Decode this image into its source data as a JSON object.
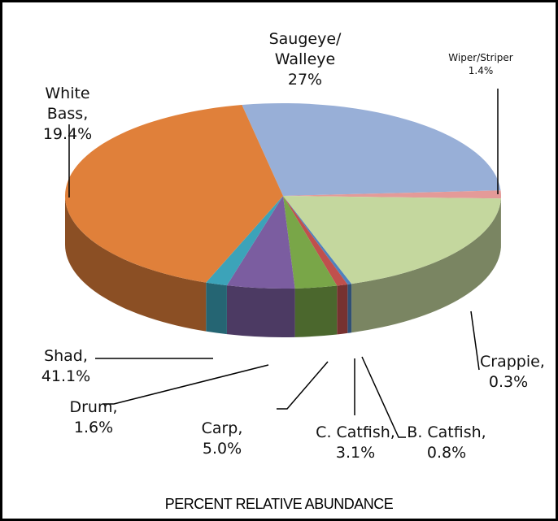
{
  "chart_data": {
    "type": "pie3d",
    "title": "PERCENT RELATIVE ABUNDANCE",
    "categories": [
      "Saugeye/ Walleye",
      "Wiper/Striper",
      "White Bass,",
      "Crappie,",
      "B. Catfish,",
      "C. Catfish,",
      "Carp,",
      "Drum,",
      "Shad,"
    ],
    "values": [
      27,
      1.4,
      19.4,
      0.3,
      0.8,
      3.1,
      5.0,
      1.6,
      41.1
    ],
    "value_labels": [
      "27%",
      "1.4%",
      "19.4%",
      "0.3%",
      "0.8%",
      "3.1%",
      "5.0%",
      "1.6%",
      "41.1%"
    ],
    "colors": [
      "#98afd7",
      "#e49a98",
      "#c4d79e",
      "#4f81bd",
      "#c0504d",
      "#79a648",
      "#7b5da0",
      "#3ca3b9",
      "#e0803a"
    ]
  }
}
